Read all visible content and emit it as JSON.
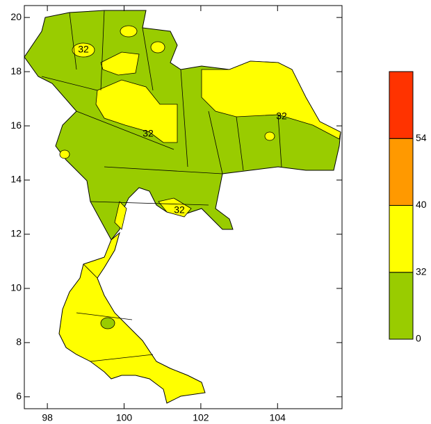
{
  "map": {
    "xlim": [
      97.4,
      105.68
    ],
    "ylim": [
      5.56,
      20.44
    ],
    "xticks": [
      98,
      100,
      102,
      104
    ],
    "yticks": [
      6,
      8,
      10,
      12,
      14,
      16,
      18,
      20
    ],
    "contour_labels": [
      "32",
      "32",
      "32",
      "32"
    ],
    "colorbar": {
      "levels": [
        0,
        32,
        40,
        54
      ],
      "colors": [
        "#99cc00",
        "#ffff00",
        "#ff9900",
        "#ff3300"
      ]
    }
  }
}
